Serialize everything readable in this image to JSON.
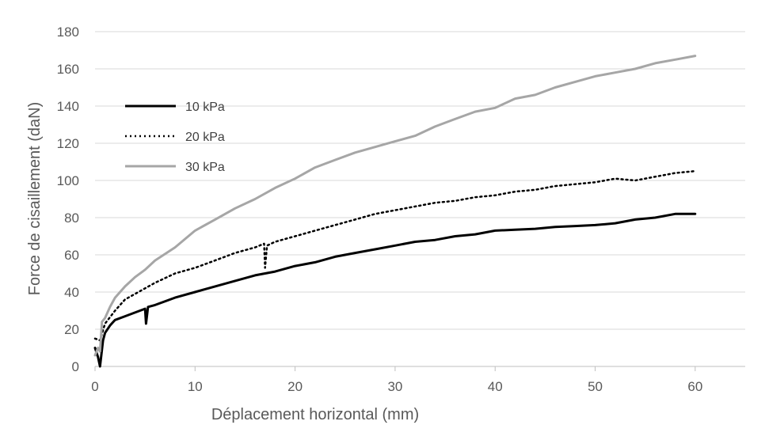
{
  "chart_data": {
    "type": "line",
    "title": "",
    "xlabel": "Déplacement horizontal (mm)",
    "ylabel": "Force de cisaillement (daN)",
    "xlim": [
      0,
      65
    ],
    "ylim": [
      0,
      180
    ],
    "xticks": [
      0,
      10,
      20,
      30,
      40,
      50,
      60
    ],
    "yticks": [
      0,
      20,
      40,
      60,
      80,
      100,
      120,
      140,
      160,
      180
    ],
    "grid": "horizontal",
    "legend_position": "upper-left inside",
    "series": [
      {
        "name": "10 kPa",
        "color": "#000000",
        "style": "solid",
        "points": [
          [
            0,
            10
          ],
          [
            0.3,
            5
          ],
          [
            0.5,
            0
          ],
          [
            0.8,
            14
          ],
          [
            1,
            18
          ],
          [
            1.5,
            22
          ],
          [
            2,
            25
          ],
          [
            3,
            27
          ],
          [
            4,
            29
          ],
          [
            5,
            31
          ],
          [
            5.1,
            23
          ],
          [
            5.3,
            32
          ],
          [
            6,
            33
          ],
          [
            8,
            37
          ],
          [
            10,
            40
          ],
          [
            12,
            43
          ],
          [
            14,
            46
          ],
          [
            16,
            49
          ],
          [
            18,
            51
          ],
          [
            20,
            54
          ],
          [
            22,
            56
          ],
          [
            24,
            59
          ],
          [
            26,
            61
          ],
          [
            28,
            63
          ],
          [
            30,
            65
          ],
          [
            32,
            67
          ],
          [
            34,
            68
          ],
          [
            36,
            70
          ],
          [
            38,
            71
          ],
          [
            40,
            73
          ],
          [
            42,
            73.5
          ],
          [
            44,
            74
          ],
          [
            46,
            75
          ],
          [
            48,
            75.5
          ],
          [
            50,
            76
          ],
          [
            52,
            77
          ],
          [
            54,
            79
          ],
          [
            56,
            80
          ],
          [
            58,
            82
          ],
          [
            60,
            82
          ]
        ]
      },
      {
        "name": "20 kPa",
        "color": "#000000",
        "style": "dotted",
        "points": [
          [
            0,
            15
          ],
          [
            0.5,
            14
          ],
          [
            1,
            23
          ],
          [
            2,
            30
          ],
          [
            3,
            36
          ],
          [
            4,
            39
          ],
          [
            5,
            42
          ],
          [
            6,
            45
          ],
          [
            8,
            50
          ],
          [
            10,
            53
          ],
          [
            12,
            57
          ],
          [
            14,
            61
          ],
          [
            16,
            64
          ],
          [
            16.9,
            66
          ],
          [
            17,
            53
          ],
          [
            17.2,
            65
          ],
          [
            18,
            67
          ],
          [
            20,
            70
          ],
          [
            22,
            73
          ],
          [
            24,
            76
          ],
          [
            26,
            79
          ],
          [
            28,
            82
          ],
          [
            30,
            84
          ],
          [
            32,
            86
          ],
          [
            34,
            88
          ],
          [
            36,
            89
          ],
          [
            38,
            91
          ],
          [
            40,
            92
          ],
          [
            42,
            94
          ],
          [
            44,
            95
          ],
          [
            46,
            97
          ],
          [
            48,
            98
          ],
          [
            50,
            99
          ],
          [
            52,
            101
          ],
          [
            54,
            100
          ],
          [
            56,
            102
          ],
          [
            58,
            104
          ],
          [
            60,
            105
          ]
        ]
      },
      {
        "name": "30 kPa",
        "color": "#a6a6a6",
        "style": "solid",
        "points": [
          [
            0,
            6
          ],
          [
            0.3,
            10
          ],
          [
            0.5,
            8
          ],
          [
            0.7,
            24
          ],
          [
            1,
            26
          ],
          [
            1.5,
            32
          ],
          [
            2,
            37
          ],
          [
            3,
            43
          ],
          [
            4,
            48
          ],
          [
            5,
            52
          ],
          [
            6,
            57
          ],
          [
            8,
            64
          ],
          [
            10,
            73
          ],
          [
            12,
            79
          ],
          [
            14,
            85
          ],
          [
            16,
            90
          ],
          [
            18,
            96
          ],
          [
            20,
            101
          ],
          [
            22,
            107
          ],
          [
            24,
            111
          ],
          [
            26,
            115
          ],
          [
            28,
            118
          ],
          [
            30,
            121
          ],
          [
            32,
            124
          ],
          [
            34,
            129
          ],
          [
            36,
            133
          ],
          [
            38,
            137
          ],
          [
            40,
            139
          ],
          [
            42,
            144
          ],
          [
            44,
            146
          ],
          [
            46,
            150
          ],
          [
            48,
            153
          ],
          [
            50,
            156
          ],
          [
            52,
            158
          ],
          [
            54,
            160
          ],
          [
            56,
            163
          ],
          [
            58,
            165
          ],
          [
            60,
            167
          ]
        ]
      }
    ]
  }
}
